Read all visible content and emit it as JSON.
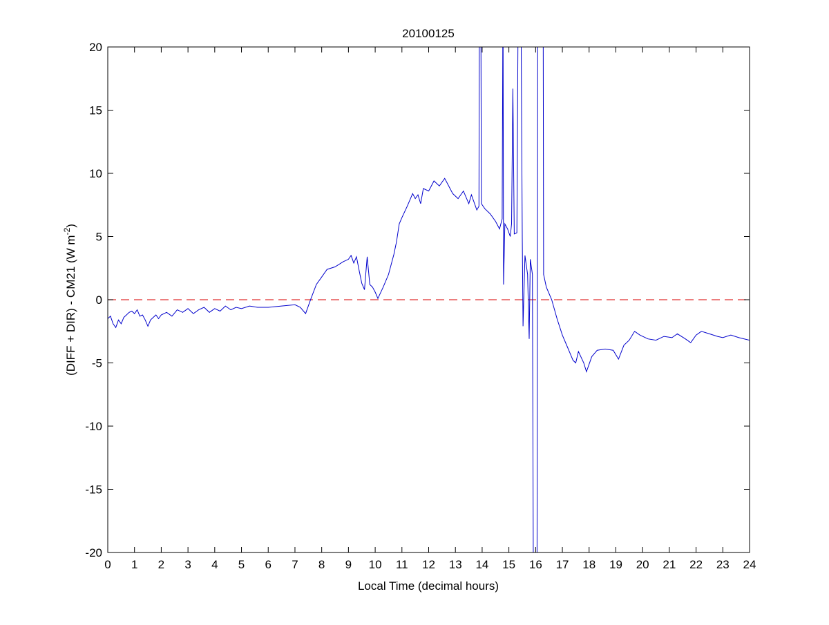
{
  "chart_data": {
    "type": "line",
    "title": "20100125",
    "xlabel": "Local Time (decimal hours)",
    "ylabel_main": "(DIFF + DIR) - CM21 (W m",
    "ylabel_sup": "-2",
    "ylabel_end": ")",
    "xlim": [
      0,
      24
    ],
    "ylim": [
      -20,
      20
    ],
    "xticks": [
      0,
      1,
      2,
      3,
      4,
      5,
      6,
      7,
      8,
      9,
      10,
      11,
      12,
      13,
      14,
      15,
      16,
      17,
      18,
      19,
      20,
      21,
      22,
      23,
      24
    ],
    "yticks": [
      -20,
      -15,
      -10,
      -5,
      0,
      5,
      10,
      15,
      20
    ],
    "grid": false,
    "reference_line": {
      "y": 0,
      "color": "#e03030",
      "style": "dashed"
    },
    "series_color": "#0000cc",
    "series": [
      {
        "points": [
          [
            0,
            -1.5
          ],
          [
            0.1,
            -1.3
          ],
          [
            0.2,
            -1.9
          ],
          [
            0.3,
            -2.2
          ],
          [
            0.4,
            -1.6
          ],
          [
            0.5,
            -1.9
          ],
          [
            0.6,
            -1.4
          ],
          [
            0.7,
            -1.2
          ],
          [
            0.8,
            -1.0
          ],
          [
            0.9,
            -0.9
          ],
          [
            1.0,
            -1.1
          ],
          [
            1.1,
            -0.8
          ],
          [
            1.2,
            -1.3
          ],
          [
            1.3,
            -1.2
          ],
          [
            1.4,
            -1.6
          ],
          [
            1.5,
            -2.1
          ],
          [
            1.6,
            -1.6
          ],
          [
            1.7,
            -1.4
          ],
          [
            1.8,
            -1.2
          ],
          [
            1.9,
            -1.5
          ],
          [
            2.0,
            -1.2
          ],
          [
            2.2,
            -1.0
          ],
          [
            2.4,
            -1.3
          ],
          [
            2.6,
            -0.8
          ],
          [
            2.8,
            -1.0
          ],
          [
            3.0,
            -0.7
          ],
          [
            3.2,
            -1.1
          ],
          [
            3.4,
            -0.8
          ],
          [
            3.6,
            -0.6
          ],
          [
            3.8,
            -1.0
          ],
          [
            4.0,
            -0.7
          ],
          [
            4.2,
            -0.9
          ],
          [
            4.4,
            -0.5
          ],
          [
            4.6,
            -0.8
          ],
          [
            4.8,
            -0.6
          ],
          [
            5.0,
            -0.7
          ],
          [
            5.3,
            -0.5
          ],
          [
            5.6,
            -0.6
          ],
          [
            6.0,
            -0.6
          ],
          [
            6.5,
            -0.5
          ],
          [
            7.0,
            -0.4
          ],
          [
            7.2,
            -0.6
          ],
          [
            7.4,
            -1.1
          ],
          [
            7.5,
            -0.5
          ],
          [
            7.6,
            0.1
          ],
          [
            7.8,
            1.2
          ],
          [
            8.0,
            1.8
          ],
          [
            8.2,
            2.4
          ],
          [
            8.5,
            2.6
          ],
          [
            8.8,
            3.0
          ],
          [
            9.0,
            3.2
          ],
          [
            9.1,
            3.5
          ],
          [
            9.2,
            2.9
          ],
          [
            9.3,
            3.4
          ],
          [
            9.4,
            2.3
          ],
          [
            9.5,
            1.3
          ],
          [
            9.6,
            0.8
          ],
          [
            9.7,
            3.4
          ],
          [
            9.8,
            1.2
          ],
          [
            9.9,
            1.0
          ],
          [
            10.0,
            0.6
          ],
          [
            10.1,
            0.1
          ],
          [
            10.3,
            1.0
          ],
          [
            10.5,
            2.0
          ],
          [
            10.7,
            3.6
          ],
          [
            10.8,
            4.6
          ],
          [
            10.9,
            6.0
          ],
          [
            11.0,
            6.5
          ],
          [
            11.2,
            7.4
          ],
          [
            11.4,
            8.4
          ],
          [
            11.5,
            8.0
          ],
          [
            11.6,
            8.3
          ],
          [
            11.7,
            7.6
          ],
          [
            11.8,
            8.8
          ],
          [
            12.0,
            8.6
          ],
          [
            12.2,
            9.4
          ],
          [
            12.4,
            9.0
          ],
          [
            12.6,
            9.6
          ],
          [
            12.7,
            9.2
          ],
          [
            12.9,
            8.4
          ],
          [
            13.1,
            8.0
          ],
          [
            13.3,
            8.6
          ],
          [
            13.5,
            7.6
          ],
          [
            13.6,
            8.3
          ],
          [
            13.8,
            7.1
          ],
          [
            13.88,
            7.4
          ],
          [
            13.9,
            25
          ],
          [
            13.95,
            25
          ],
          [
            13.97,
            7.6
          ],
          [
            14.1,
            7.2
          ],
          [
            14.3,
            6.8
          ],
          [
            14.5,
            6.2
          ],
          [
            14.65,
            5.6
          ],
          [
            14.75,
            6.4
          ],
          [
            14.78,
            25
          ],
          [
            14.8,
            1.2
          ],
          [
            14.85,
            6.0
          ],
          [
            14.95,
            5.6
          ],
          [
            15.05,
            5.0
          ],
          [
            15.1,
            6.0
          ],
          [
            15.15,
            16.7
          ],
          [
            15.2,
            5.2
          ],
          [
            15.3,
            5.3
          ],
          [
            15.35,
            25
          ],
          [
            15.45,
            25
          ],
          [
            15.5,
            5.0
          ],
          [
            15.53,
            -2.1
          ],
          [
            15.6,
            3.5
          ],
          [
            15.7,
            2.0
          ],
          [
            15.76,
            -3.1
          ],
          [
            15.8,
            3.2
          ],
          [
            15.88,
            2.0
          ],
          [
            15.92,
            -25
          ],
          [
            16.05,
            -25
          ],
          [
            16.08,
            25
          ],
          [
            16.28,
            25
          ],
          [
            16.3,
            2.0
          ],
          [
            16.4,
            1.0
          ],
          [
            16.6,
            0.0
          ],
          [
            16.8,
            -1.5
          ],
          [
            17.0,
            -2.8
          ],
          [
            17.2,
            -3.8
          ],
          [
            17.4,
            -4.8
          ],
          [
            17.5,
            -5.0
          ],
          [
            17.6,
            -4.1
          ],
          [
            17.8,
            -5.0
          ],
          [
            17.9,
            -5.7
          ],
          [
            18.1,
            -4.5
          ],
          [
            18.3,
            -4.0
          ],
          [
            18.6,
            -3.9
          ],
          [
            18.9,
            -4.0
          ],
          [
            19.1,
            -4.7
          ],
          [
            19.3,
            -3.6
          ],
          [
            19.5,
            -3.2
          ],
          [
            19.7,
            -2.5
          ],
          [
            19.9,
            -2.8
          ],
          [
            20.2,
            -3.1
          ],
          [
            20.5,
            -3.2
          ],
          [
            20.8,
            -2.9
          ],
          [
            21.1,
            -3.0
          ],
          [
            21.3,
            -2.7
          ],
          [
            21.6,
            -3.1
          ],
          [
            21.8,
            -3.4
          ],
          [
            22.0,
            -2.8
          ],
          [
            22.2,
            -2.5
          ],
          [
            22.5,
            -2.7
          ],
          [
            22.8,
            -2.9
          ],
          [
            23.0,
            -3.0
          ],
          [
            23.3,
            -2.8
          ],
          [
            23.6,
            -3.0
          ],
          [
            24.0,
            -3.2
          ]
        ]
      }
    ]
  }
}
